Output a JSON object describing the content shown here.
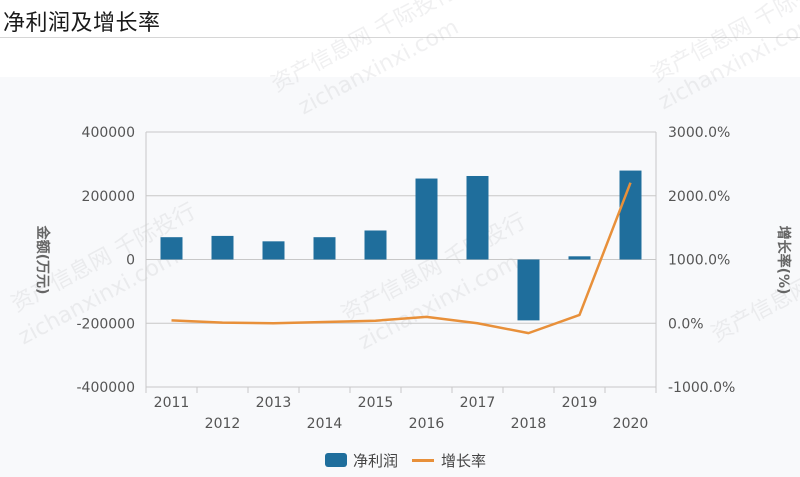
{
  "title": "净利润及增长率",
  "watermarks": [
    "资产信息网 千际投行",
    "zichanxinxi.com"
  ],
  "colors": {
    "bar": "#1f6e9c",
    "line": "#e8903a",
    "grid": "#c8c8c8",
    "panel_bg": "#f8f9fb"
  },
  "legend": [
    {
      "label": "净利润",
      "type": "bar"
    },
    {
      "label": "增长率",
      "type": "line"
    }
  ],
  "axes": {
    "left": {
      "title": "金额(万元)",
      "ticks": [
        "400000",
        "200000",
        "0",
        "-200000",
        "-400000"
      ]
    },
    "right": {
      "title": "增长率(%)",
      "ticks": [
        "3000.0%",
        "2000.0%",
        "1000.0%",
        "0.0%",
        "-1000.0%"
      ]
    },
    "x": {
      "ticks": [
        "2011",
        "2012",
        "2013",
        "2014",
        "2015",
        "2016",
        "2017",
        "2018",
        "2019",
        "2020"
      ]
    }
  },
  "chart_data": {
    "type": "bar",
    "title": "净利润及增长率",
    "categories": [
      "2011",
      "2012",
      "2013",
      "2014",
      "2015",
      "2016",
      "2017",
      "2018",
      "2019",
      "2020"
    ],
    "series": [
      {
        "name": "净利润",
        "type": "bar",
        "axis": "left",
        "values": [
          70000,
          74000,
          57000,
          70000,
          91000,
          254000,
          262000,
          -191000,
          10000,
          279000
        ]
      },
      {
        "name": "增长率",
        "type": "line",
        "axis": "right",
        "values": [
          45,
          10,
          0,
          20,
          40,
          100,
          0,
          -155,
          130,
          2205
        ]
      }
    ],
    "xlabel": "",
    "ylabel": "金额(万元)",
    "ylabel_right": "增长率(%)",
    "ylim": [
      -400000,
      400000
    ],
    "ylim_right": [
      -1000,
      3000
    ],
    "grid": true,
    "legend_position": "bottom"
  }
}
